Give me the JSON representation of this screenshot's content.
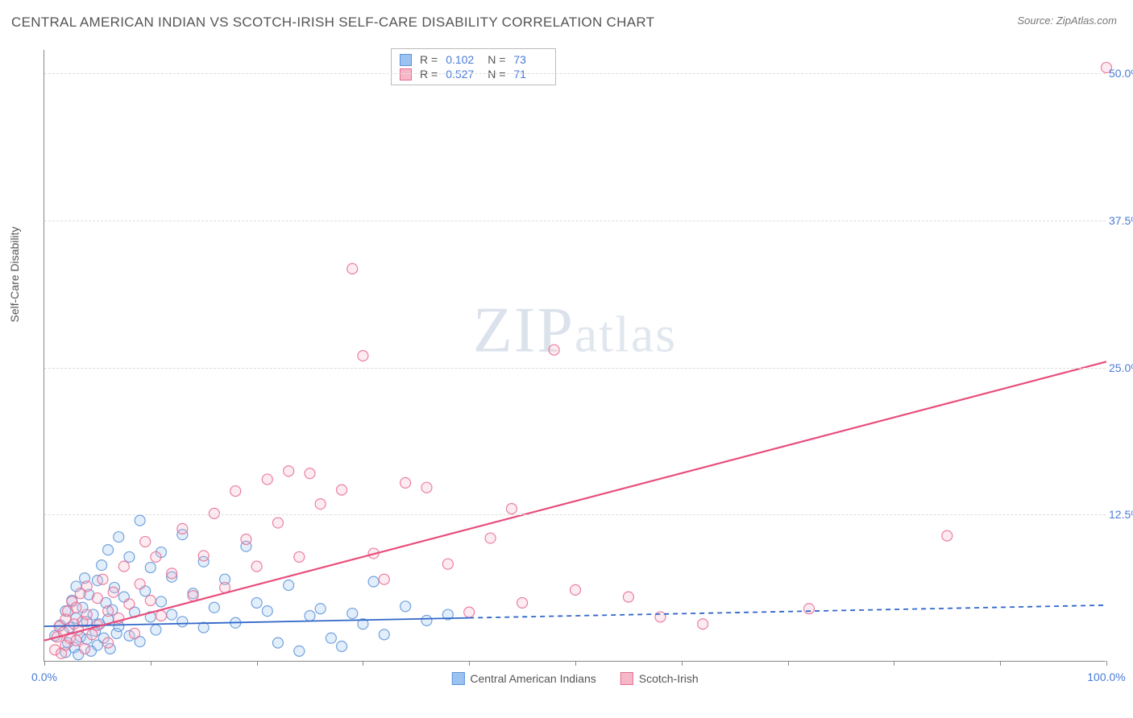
{
  "title": "CENTRAL AMERICAN INDIAN VS SCOTCH-IRISH SELF-CARE DISABILITY CORRELATION CHART",
  "source_label": "Source: ",
  "source_name": "ZipAtlas.com",
  "y_axis_label": "Self-Care Disability",
  "watermark_a": "ZIP",
  "watermark_b": "atlas",
  "chart": {
    "type": "scatter",
    "xlim": [
      0,
      100
    ],
    "ylim": [
      0,
      52
    ],
    "x_ticks": [
      0,
      10,
      20,
      30,
      40,
      50,
      60,
      70,
      80,
      90,
      100
    ],
    "x_tick_labels": {
      "0": "0.0%",
      "100": "100.0%"
    },
    "y_gridlines": [
      12.5,
      25.0,
      37.5,
      50.0
    ],
    "y_grid_labels": [
      "12.5%",
      "25.0%",
      "37.5%",
      "50.0%"
    ],
    "background_color": "#ffffff",
    "grid_color": "#dddddd",
    "axis_color": "#888888",
    "tick_label_color": "#4a7bd8",
    "marker_radius": 6.5,
    "series": [
      {
        "name": "Central American Indians",
        "color_fill": "#9bc2f0",
        "color_stroke": "#5a93d8",
        "r": 0.102,
        "n": 73,
        "trend": {
          "x0": 0,
          "y0": 3.0,
          "x1": 100,
          "y1": 4.8,
          "solid_until_x": 40,
          "color": "#2f66c9",
          "dash": "6,5",
          "width": 1.8
        },
        "points": [
          [
            1,
            2.2
          ],
          [
            1.5,
            3.1
          ],
          [
            2,
            0.8
          ],
          [
            2,
            4.3
          ],
          [
            2.2,
            1.6
          ],
          [
            2.4,
            2.9
          ],
          [
            2.6,
            5.2
          ],
          [
            2.8,
            1.2
          ],
          [
            3,
            3.7
          ],
          [
            3,
            6.4
          ],
          [
            3.2,
            0.6
          ],
          [
            3.4,
            2.1
          ],
          [
            3.6,
            4.6
          ],
          [
            3.8,
            7.1
          ],
          [
            4,
            1.9
          ],
          [
            4,
            3.4
          ],
          [
            4.2,
            5.7
          ],
          [
            4.4,
            0.9
          ],
          [
            4.6,
            4.0
          ],
          [
            4.8,
            2.6
          ],
          [
            5,
            6.9
          ],
          [
            5,
            1.4
          ],
          [
            5.2,
            3.2
          ],
          [
            5.4,
            8.2
          ],
          [
            5.6,
            2.0
          ],
          [
            5.8,
            5.0
          ],
          [
            6,
            3.6
          ],
          [
            6,
            9.5
          ],
          [
            6.2,
            1.1
          ],
          [
            6.4,
            4.4
          ],
          [
            6.6,
            6.3
          ],
          [
            6.8,
            2.4
          ],
          [
            7,
            10.6
          ],
          [
            7,
            3.0
          ],
          [
            7.5,
            5.5
          ],
          [
            8,
            8.9
          ],
          [
            8,
            2.2
          ],
          [
            8.5,
            4.2
          ],
          [
            9,
            12.0
          ],
          [
            9,
            1.7
          ],
          [
            9.5,
            6.0
          ],
          [
            10,
            3.8
          ],
          [
            10,
            8.0
          ],
          [
            10.5,
            2.7
          ],
          [
            11,
            5.1
          ],
          [
            11,
            9.3
          ],
          [
            12,
            4.0
          ],
          [
            12,
            7.2
          ],
          [
            13,
            3.4
          ],
          [
            13,
            10.8
          ],
          [
            14,
            5.8
          ],
          [
            15,
            2.9
          ],
          [
            15,
            8.5
          ],
          [
            16,
            4.6
          ],
          [
            17,
            7.0
          ],
          [
            18,
            3.3
          ],
          [
            19,
            9.8
          ],
          [
            20,
            5.0
          ],
          [
            21,
            4.3
          ],
          [
            22,
            1.6
          ],
          [
            23,
            6.5
          ],
          [
            24,
            0.9
          ],
          [
            25,
            3.9
          ],
          [
            26,
            4.5
          ],
          [
            27,
            2.0
          ],
          [
            28,
            1.3
          ],
          [
            29,
            4.1
          ],
          [
            30,
            3.2
          ],
          [
            31,
            6.8
          ],
          [
            32,
            2.3
          ],
          [
            34,
            4.7
          ],
          [
            36,
            3.5
          ],
          [
            38,
            4.0
          ]
        ]
      },
      {
        "name": "Scotch-Irish",
        "color_fill": "#f6b8c9",
        "color_stroke": "#e86b91",
        "r": 0.527,
        "n": 71,
        "trend": {
          "x0": 0,
          "y0": 1.8,
          "x1": 100,
          "y1": 25.5,
          "solid_until_x": 100,
          "color": "#e84d7b",
          "dash": null,
          "width": 2.2
        },
        "points": [
          [
            1,
            1.0
          ],
          [
            1.2,
            2.1
          ],
          [
            1.4,
            3.0
          ],
          [
            1.6,
            0.7
          ],
          [
            1.8,
            2.5
          ],
          [
            2,
            3.6
          ],
          [
            2,
            1.4
          ],
          [
            2.2,
            4.3
          ],
          [
            2.4,
            2.0
          ],
          [
            2.6,
            5.1
          ],
          [
            2.8,
            3.2
          ],
          [
            3,
            1.8
          ],
          [
            3,
            4.6
          ],
          [
            3.2,
            2.7
          ],
          [
            3.4,
            5.8
          ],
          [
            3.6,
            3.4
          ],
          [
            3.8,
            1.1
          ],
          [
            4,
            4.0
          ],
          [
            4,
            6.4
          ],
          [
            4.5,
            2.3
          ],
          [
            5,
            5.4
          ],
          [
            5,
            3.1
          ],
          [
            5.5,
            7.0
          ],
          [
            6,
            4.3
          ],
          [
            6,
            1.6
          ],
          [
            6.5,
            5.9
          ],
          [
            7,
            3.7
          ],
          [
            7.5,
            8.1
          ],
          [
            8,
            4.9
          ],
          [
            8.5,
            2.4
          ],
          [
            9,
            6.6
          ],
          [
            9.5,
            10.2
          ],
          [
            10,
            5.2
          ],
          [
            10.5,
            8.9
          ],
          [
            11,
            3.9
          ],
          [
            12,
            7.5
          ],
          [
            13,
            11.3
          ],
          [
            14,
            5.6
          ],
          [
            15,
            9.0
          ],
          [
            16,
            12.6
          ],
          [
            17,
            6.3
          ],
          [
            18,
            14.5
          ],
          [
            19,
            10.4
          ],
          [
            20,
            8.1
          ],
          [
            21,
            15.5
          ],
          [
            22,
            11.8
          ],
          [
            23,
            16.2
          ],
          [
            24,
            8.9
          ],
          [
            25,
            16.0
          ],
          [
            26,
            13.4
          ],
          [
            28,
            14.6
          ],
          [
            29,
            33.4
          ],
          [
            30,
            26.0
          ],
          [
            31,
            9.2
          ],
          [
            32,
            7.0
          ],
          [
            34,
            15.2
          ],
          [
            36,
            14.8
          ],
          [
            38,
            8.3
          ],
          [
            40,
            4.2
          ],
          [
            42,
            10.5
          ],
          [
            44,
            13.0
          ],
          [
            45,
            5.0
          ],
          [
            48,
            26.5
          ],
          [
            50,
            6.1
          ],
          [
            55,
            5.5
          ],
          [
            58,
            3.8
          ],
          [
            62,
            3.2
          ],
          [
            72,
            4.5
          ],
          [
            85,
            10.7
          ],
          [
            100,
            50.5
          ]
        ]
      }
    ]
  },
  "stats_box": {
    "r_label": "R =",
    "n_label": "N ="
  },
  "legend": [
    {
      "label": "Central American Indians",
      "fill": "#9bc2f0",
      "stroke": "#5a93d8"
    },
    {
      "label": "Scotch-Irish",
      "fill": "#f6b8c9",
      "stroke": "#e86b91"
    }
  ]
}
